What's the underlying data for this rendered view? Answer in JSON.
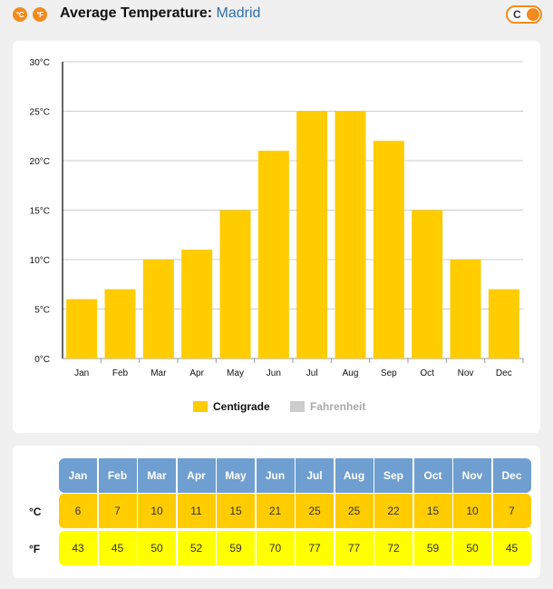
{
  "header": {
    "unit_icons": [
      {
        "label": "°C",
        "icon": "celsius-icon"
      },
      {
        "label": "°F",
        "icon": "fahrenheit-icon"
      }
    ],
    "title_prefix": "Average Temperature:",
    "city": "Madrid",
    "toggle_label": "C"
  },
  "colors": {
    "accent": "#f28b1e",
    "bar": "#ffcc00",
    "fahrenheit_row": "#ffff00",
    "table_header": "#6f9fd0",
    "city_link": "#2e6fa8",
    "legend_inactive": "#cccccc"
  },
  "chart_data": {
    "type": "bar",
    "categories": [
      "Jan",
      "Feb",
      "Mar",
      "Apr",
      "May",
      "Jun",
      "Jul",
      "Aug",
      "Sep",
      "Oct",
      "Nov",
      "Dec"
    ],
    "series": [
      {
        "name": "Centigrade",
        "values": [
          6,
          7,
          10,
          11,
          15,
          21,
          25,
          25,
          22,
          15,
          10,
          7
        ],
        "active": true
      },
      {
        "name": "Fahrenheit",
        "values": [
          43,
          45,
          50,
          52,
          59,
          70,
          77,
          77,
          72,
          59,
          50,
          45
        ],
        "active": false
      }
    ],
    "ylim": [
      0,
      30
    ],
    "yticks": [
      0,
      5,
      10,
      15,
      20,
      25,
      30
    ],
    "ytick_labels": [
      "0°C",
      "5°C",
      "10°C",
      "15°C",
      "20°C",
      "25°C",
      "30°C"
    ],
    "grid": true,
    "legend_position": "bottom-center"
  },
  "table": {
    "months": [
      "Jan",
      "Feb",
      "Mar",
      "Apr",
      "May",
      "Jun",
      "Jul",
      "Aug",
      "Sep",
      "Oct",
      "Nov",
      "Dec"
    ],
    "rows": [
      {
        "label": "°C",
        "values": [
          "6",
          "7",
          "10",
          "11",
          "15",
          "21",
          "25",
          "25",
          "22",
          "15",
          "10",
          "7"
        ]
      },
      {
        "label": "°F",
        "values": [
          "43",
          "45",
          "50",
          "52",
          "59",
          "70",
          "77",
          "77",
          "72",
          "59",
          "50",
          "45"
        ]
      }
    ]
  }
}
